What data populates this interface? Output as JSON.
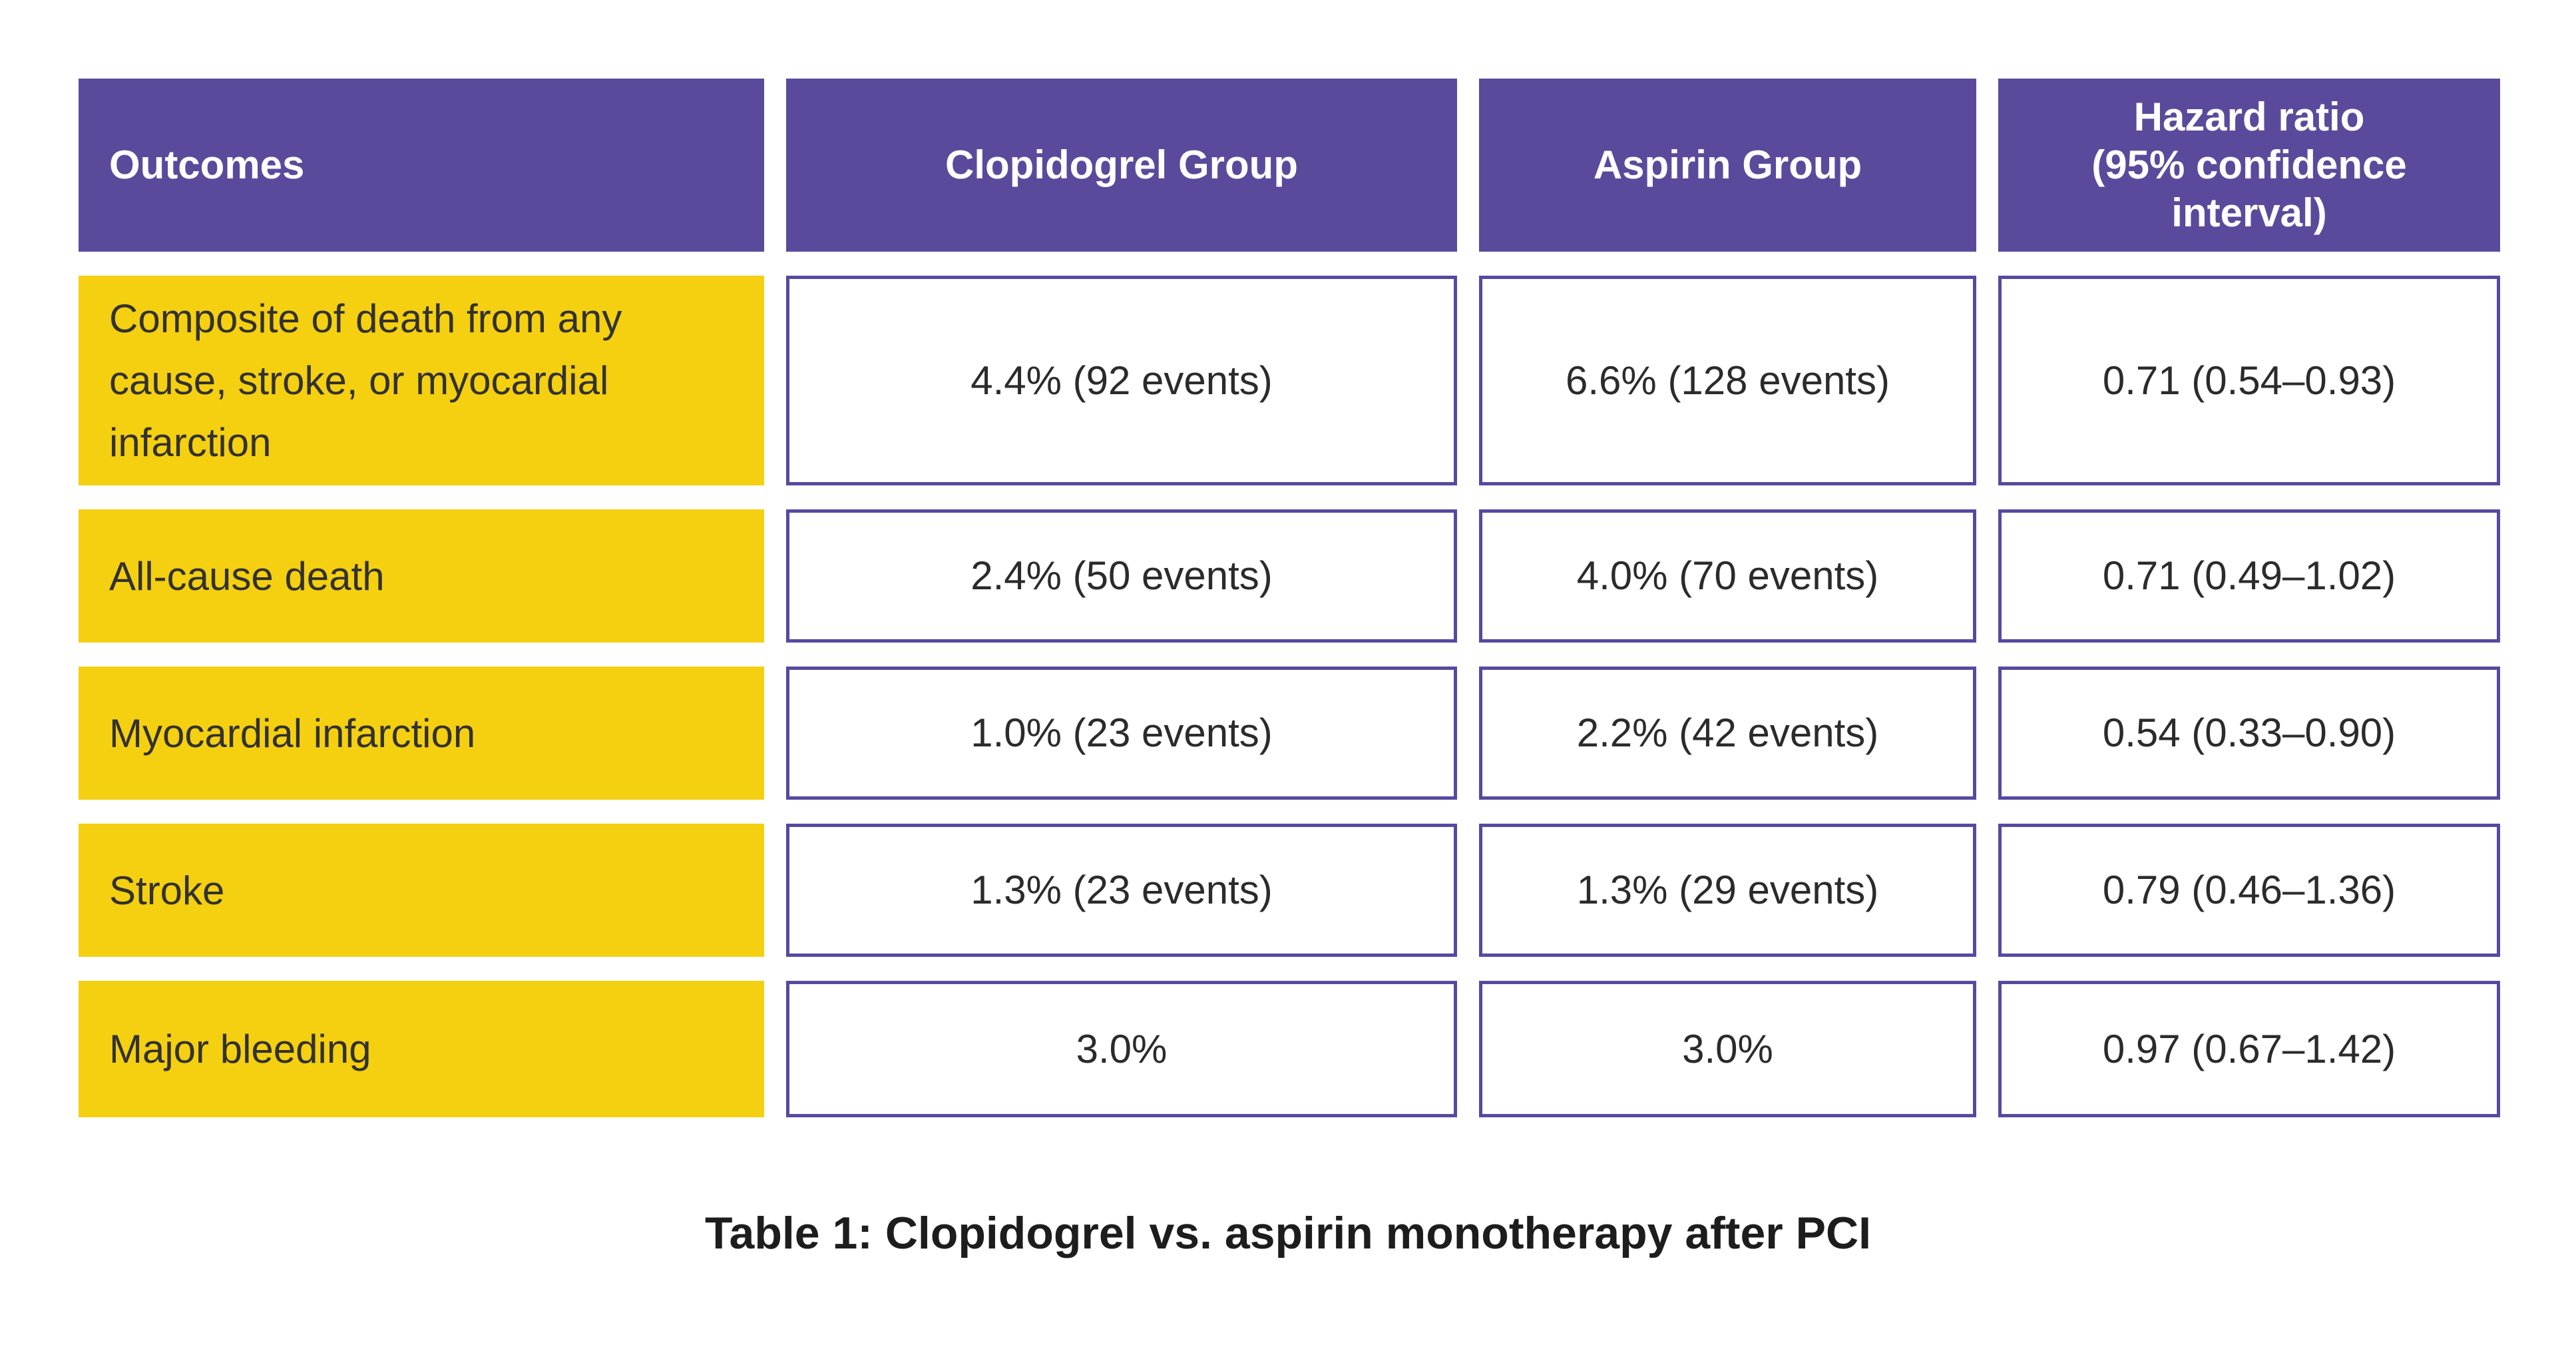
{
  "colors": {
    "header_bg": "#5b4a9b",
    "header_text": "#ffffff",
    "outcome_bg": "#f4d011",
    "outcome_text": "#333130",
    "value_text": "#2b2b2b",
    "cell_border": "#5649a1",
    "page_background": "#ffffff",
    "caption_text": "#1d1d1d"
  },
  "chart_data": {
    "type": "table",
    "title": "Table 1: Clopidogrel vs. aspirin monotherapy after PCI",
    "columns": [
      {
        "label": "Outcomes"
      },
      {
        "label": "Clopidogrel Group"
      },
      {
        "label": "Aspirin Group"
      },
      {
        "label": "Hazard ratio (95% confidence interval)",
        "lines": [
          "Hazard ratio",
          "(95% confidence",
          "interval)"
        ]
      }
    ],
    "rows": [
      {
        "outcome": "Composite of death from any cause, stroke, or myocardial infarction",
        "clopidogrel": "4.4% (92 events)",
        "aspirin": "6.6% (128 events)",
        "hazard_ratio": "0.71 (0.54–0.93)"
      },
      {
        "outcome": "All-cause death",
        "clopidogrel": "2.4% (50 events)",
        "aspirin": "4.0% (70 events)",
        "hazard_ratio": "0.71 (0.49–1.02)"
      },
      {
        "outcome": "Myocardial infarction",
        "clopidogrel": "1.0% (23 events)",
        "aspirin": "2.2% (42 events)",
        "hazard_ratio": "0.54 (0.33–0.90)"
      },
      {
        "outcome": "Stroke",
        "clopidogrel": "1.3% (23 events)",
        "aspirin": "1.3% (29 events)",
        "hazard_ratio": "0.79 (0.46–1.36)"
      },
      {
        "outcome": "Major bleeding",
        "clopidogrel": "3.0%",
        "aspirin": "3.0%",
        "hazard_ratio": "0.97 (0.67–1.42)"
      }
    ]
  }
}
